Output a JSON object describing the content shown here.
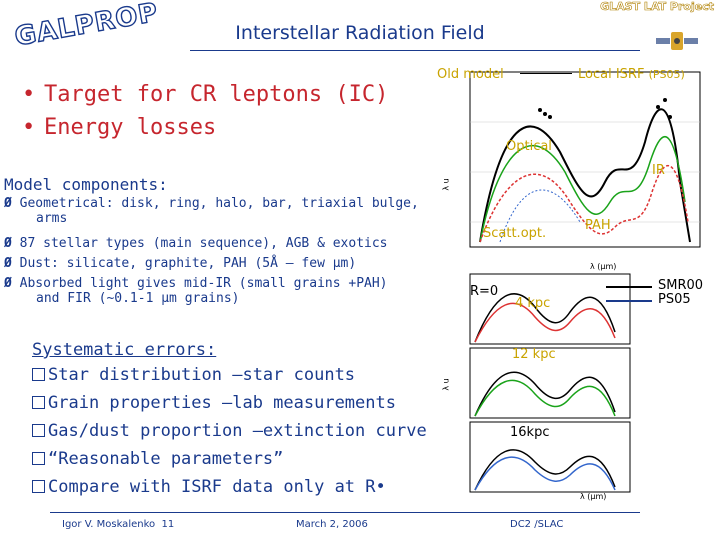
{
  "header": {
    "logo": "GALPROP",
    "title": "Interstellar Radiation Field",
    "project": "GLAST LAT Project"
  },
  "bullets": [
    "Target for CR leptons (IC)",
    "Energy losses"
  ],
  "components": {
    "heading": "Model components:",
    "items": [
      [
        "Geometrical: disk, ring, halo, bar, triaxial bulge,",
        "arms"
      ],
      [
        "87 stellar types (main sequence), AGB & exotics"
      ],
      [
        "Dust: silicate, graphite, PAH (5Å – few μm)"
      ],
      [
        "Absorbed light gives mid-IR (small grains +PAH)",
        "and FIR (~0.1-1 μm grains)"
      ]
    ]
  },
  "systematics": {
    "heading": "Systematic errors:",
    "items": [
      "Star distribution –star counts",
      "Grain properties –lab measurements",
      "Gas/dust proportion –extinction curve",
      "“Reasonable parameters”",
      "Compare with ISRF data only at R•"
    ]
  },
  "plot_top": {
    "label_old": "Old model",
    "label_local": "Local ISRF",
    "label_local_ref": "(PS05)",
    "label_optical": "Optical",
    "label_ir": "IR",
    "label_scatt": "Scatt.opt.",
    "label_pah": "PAH",
    "y_axis": "λ u",
    "x_axis": "λ (μm)"
  },
  "plot_bottom": {
    "r0": "R=0",
    "r4": "4 kpc",
    "r12": "12 kpc",
    "r16": "16kpc",
    "legend": [
      "SMR00",
      "PS05"
    ],
    "y_axis": "λ u",
    "x_axis": "λ (μm)"
  },
  "footer": {
    "author": "Igor V. Moskalenko",
    "page": "11",
    "date": "March 2, 2006",
    "venue": "DC2 /SLAC"
  },
  "colors": {
    "accent": "#1a3a8c",
    "bullet": "#c6262e",
    "label": "#c9a300"
  }
}
